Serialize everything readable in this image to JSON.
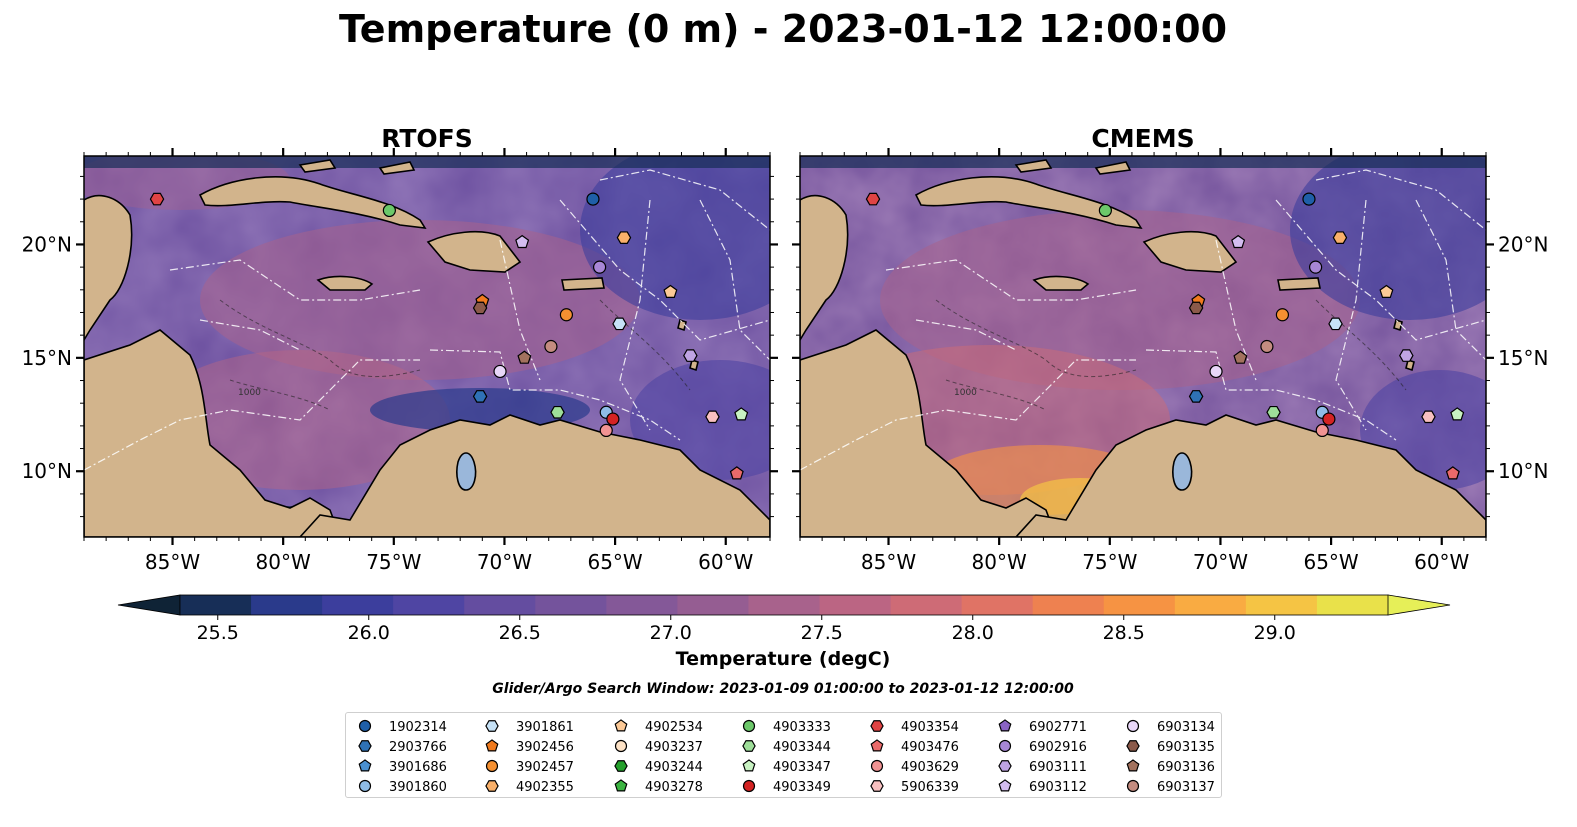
{
  "figure": {
    "title": "Temperature (0 m) - 2023-01-12 12:00:00",
    "search_window": "Glider/Argo Search Window: 2023-01-09 01:00:00 to 2023-01-12 12:00:00"
  },
  "chart_data": [
    {
      "type": "heatmap",
      "title": "RTOFS",
      "variable": "Temperature (0 m)",
      "lon_range": [
        -89,
        -58
      ],
      "lat_range": [
        7.1,
        23.9
      ],
      "x_ticks": [
        "85°W",
        "80°W",
        "75°W",
        "70°W",
        "65°W",
        "60°W"
      ],
      "x_tick_values": [
        -85,
        -80,
        -75,
        -70,
        -65,
        -60
      ],
      "y_ticks": [
        "10°N",
        "15°N",
        "20°N"
      ],
      "y_tick_values": [
        10,
        15,
        20
      ],
      "y_tick_side": "left",
      "contour_labels": [
        "1000"
      ]
    },
    {
      "type": "heatmap",
      "title": "CMEMS",
      "variable": "Temperature (0 m)",
      "lon_range": [
        -89,
        -58
      ],
      "lat_range": [
        7.1,
        23.9
      ],
      "x_ticks": [
        "85°W",
        "80°W",
        "75°W",
        "70°W",
        "65°W",
        "60°W"
      ],
      "x_tick_values": [
        -85,
        -80,
        -75,
        -70,
        -65,
        -60
      ],
      "y_ticks": [
        "10°N",
        "15°N",
        "20°N"
      ],
      "y_tick_values": [
        10,
        15,
        20
      ],
      "y_tick_side": "right",
      "contour_labels": [
        "1000"
      ]
    }
  ],
  "colorbar": {
    "label": "Temperature (degC)",
    "vmin": 25.375,
    "vmax": 29.375,
    "step": 0.25,
    "ticks": [
      "25.5",
      "26.0",
      "26.5",
      "27.0",
      "27.5",
      "28.0",
      "28.5",
      "29.0"
    ],
    "tick_values": [
      25.5,
      26.0,
      26.5,
      27.0,
      27.5,
      28.0,
      28.5,
      29.0
    ],
    "extend": "both",
    "colors": [
      "#0f2336",
      "#172e57",
      "#2a3a8b",
      "#3c3e9d",
      "#4f45a3",
      "#644da0",
      "#74539c",
      "#845898",
      "#955d92",
      "#a8628c",
      "#bb6583",
      "#ce6b76",
      "#e07365",
      "#ee8150",
      "#f69343",
      "#f9ab42",
      "#f5c444",
      "#e9e14a",
      "#e6ef58"
    ]
  },
  "land_color": "#d2b48c",
  "lake_color": "#9ab7da",
  "legend": {
    "items": [
      {
        "label": "1902314",
        "marker": "circle",
        "color": "#1f5fa8"
      },
      {
        "label": "2903766",
        "marker": "hexagon",
        "color": "#2f72b6"
      },
      {
        "label": "3901686",
        "marker": "pentagon",
        "color": "#4a90d0"
      },
      {
        "label": "3901860",
        "marker": "circle",
        "color": "#8fbce6"
      },
      {
        "label": "3901861",
        "marker": "hexagon",
        "color": "#c6e2f7"
      },
      {
        "label": "3902456",
        "marker": "pentagon",
        "color": "#f07a1e"
      },
      {
        "label": "3902457",
        "marker": "circle",
        "color": "#f59031"
      },
      {
        "label": "4902355",
        "marker": "hexagon",
        "color": "#f9b06a"
      },
      {
        "label": "4902534",
        "marker": "pentagon",
        "color": "#fcc996"
      },
      {
        "label": "4903237",
        "marker": "circle",
        "color": "#fde2c6"
      },
      {
        "label": "4903244",
        "marker": "hexagon",
        "color": "#24a02c"
      },
      {
        "label": "4903278",
        "marker": "pentagon",
        "color": "#3bb441"
      },
      {
        "label": "4903333",
        "marker": "circle",
        "color": "#6cc86a"
      },
      {
        "label": "4903344",
        "marker": "hexagon",
        "color": "#9ede99"
      },
      {
        "label": "4903347",
        "marker": "pentagon",
        "color": "#c8f2c2"
      },
      {
        "label": "4903349",
        "marker": "circle",
        "color": "#d42323"
      },
      {
        "label": "4903354",
        "marker": "hexagon",
        "color": "#e04444"
      },
      {
        "label": "4903476",
        "marker": "pentagon",
        "color": "#ea6a6a"
      },
      {
        "label": "4903629",
        "marker": "circle",
        "color": "#f19393"
      },
      {
        "label": "5906339",
        "marker": "hexagon",
        "color": "#f8c0c0"
      },
      {
        "label": "6902771",
        "marker": "pentagon",
        "color": "#8a63c4"
      },
      {
        "label": "6902916",
        "marker": "circle",
        "color": "#a887d6"
      },
      {
        "label": "6903111",
        "marker": "hexagon",
        "color": "#bfa4e3"
      },
      {
        "label": "6903112",
        "marker": "pentagon",
        "color": "#d4bdf0"
      },
      {
        "label": "6903134",
        "marker": "circle",
        "color": "#e8d7f8"
      },
      {
        "label": "6903135",
        "marker": "hexagon",
        "color": "#8b5a4a"
      },
      {
        "label": "6903136",
        "marker": "pentagon",
        "color": "#a3725e"
      },
      {
        "label": "6903137",
        "marker": "circle",
        "color": "#c48c80"
      }
    ]
  },
  "floats": [
    {
      "id": "4903354",
      "lon": -85.7,
      "lat": 22.0
    },
    {
      "id": "4903333",
      "lon": -75.2,
      "lat": 21.5
    },
    {
      "id": "1902314",
      "lon": -66.0,
      "lat": 22.0
    },
    {
      "id": "3902456",
      "lon": -71.0,
      "lat": 17.5
    },
    {
      "id": "6903135",
      "lon": -71.1,
      "lat": 17.2
    },
    {
      "id": "3902457",
      "lon": -67.2,
      "lat": 16.9
    },
    {
      "id": "6903112",
      "lon": -69.2,
      "lat": 20.1
    },
    {
      "id": "4902355",
      "lon": -64.6,
      "lat": 20.3
    },
    {
      "id": "6902916",
      "lon": -65.7,
      "lat": 19.0
    },
    {
      "id": "4902534",
      "lon": -62.5,
      "lat": 17.9
    },
    {
      "id": "3901861",
      "lon": -64.8,
      "lat": 16.5
    },
    {
      "id": "6903137",
      "lon": -67.9,
      "lat": 15.5
    },
    {
      "id": "6903136",
      "lon": -69.1,
      "lat": 15.0
    },
    {
      "id": "6903134",
      "lon": -70.2,
      "lat": 14.4
    },
    {
      "id": "2903766",
      "lon": -71.1,
      "lat": 13.3
    },
    {
      "id": "6903111",
      "lon": -61.6,
      "lat": 15.1
    },
    {
      "id": "4903344",
      "lon": -67.6,
      "lat": 12.6
    },
    {
      "id": "3901860",
      "lon": -65.4,
      "lat": 12.6
    },
    {
      "id": "4903349",
      "lon": -65.1,
      "lat": 12.3
    },
    {
      "id": "4903629",
      "lon": -65.4,
      "lat": 11.8
    },
    {
      "id": "5906339",
      "lon": -60.6,
      "lat": 12.4
    },
    {
      "id": "4903347",
      "lon": -59.3,
      "lat": 12.5
    },
    {
      "id": "4903476",
      "lon": -59.5,
      "lat": 9.9
    }
  ]
}
